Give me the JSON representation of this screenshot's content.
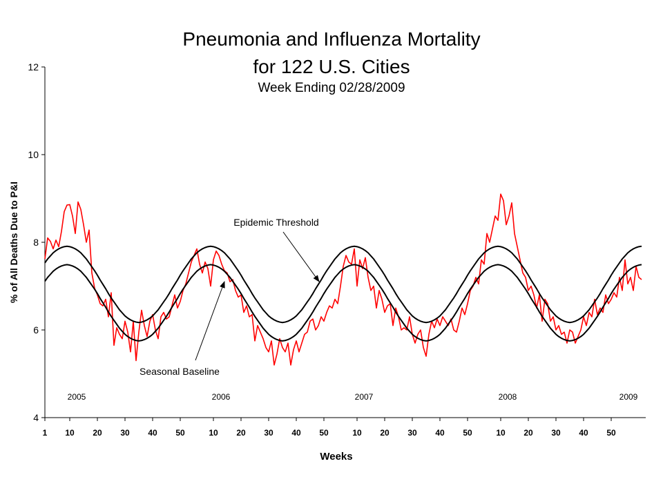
{
  "chart_data": {
    "type": "line",
    "title": "Pneumonia and Influenza Mortality",
    "title_line2": "for 122 U.S. Cities",
    "subtitle": "Week Ending 02/28/2009",
    "y_label": "% of All Deaths Due to P&I",
    "x_label": "Weeks",
    "year_labels": [
      "2005",
      "2006",
      "2007",
      "2008",
      "2009"
    ],
    "ylim": [
      4,
      12
    ],
    "yticks": [
      4,
      6,
      8,
      10,
      12
    ],
    "xlim": [
      1,
      218.5
    ],
    "xticks": [
      1,
      10,
      20,
      30,
      40,
      50,
      {
        "value": 62,
        "label": "10"
      },
      {
        "value": 72,
        "label": "20"
      },
      {
        "value": 82,
        "label": "30"
      },
      {
        "value": 92,
        "label": "40"
      },
      {
        "value": 102,
        "label": "50"
      },
      {
        "value": 114,
        "label": "10"
      },
      {
        "value": 124,
        "label": "20"
      },
      {
        "value": 134,
        "label": "30"
      },
      {
        "value": 144,
        "label": "40"
      },
      {
        "value": 154,
        "label": "50"
      },
      {
        "value": 166,
        "label": "10"
      },
      {
        "value": 176,
        "label": "20"
      },
      {
        "value": 186,
        "label": "30"
      },
      {
        "value": 196,
        "label": "40"
      },
      {
        "value": 206,
        "label": "50"
      }
    ],
    "x": [
      1,
      2,
      3,
      4,
      5,
      6,
      7,
      8,
      9,
      10,
      11,
      12,
      13,
      14,
      15,
      16,
      17,
      18,
      19,
      20,
      21,
      22,
      23,
      24,
      25,
      26,
      27,
      28,
      29,
      30,
      31,
      32,
      33,
      34,
      35,
      36,
      37,
      38,
      39,
      40,
      41,
      42,
      43,
      44,
      45,
      46,
      47,
      48,
      49,
      50,
      51,
      52,
      53,
      54,
      55,
      56,
      57,
      58,
      59,
      60,
      61,
      62,
      63,
      64,
      65,
      66,
      67,
      68,
      69,
      70,
      71,
      72,
      73,
      74,
      75,
      76,
      77,
      78,
      79,
      80,
      81,
      82,
      83,
      84,
      85,
      86,
      87,
      88,
      89,
      90,
      91,
      92,
      93,
      94,
      95,
      96,
      97,
      98,
      99,
      100,
      101,
      102,
      103,
      104,
      105,
      106,
      107,
      108,
      109,
      110,
      111,
      112,
      113,
      114,
      115,
      116,
      117,
      118,
      119,
      120,
      121,
      122,
      123,
      124,
      125,
      126,
      127,
      128,
      129,
      130,
      131,
      132,
      133,
      134,
      135,
      136,
      137,
      138,
      139,
      140,
      141,
      142,
      143,
      144,
      145,
      146,
      147,
      148,
      149,
      150,
      151,
      152,
      153,
      154,
      155,
      156,
      157,
      158,
      159,
      160,
      161,
      162,
      163,
      164,
      165,
      166,
      167,
      168,
      169,
      170,
      171,
      172,
      173,
      174,
      175,
      176,
      177,
      178,
      179,
      180,
      181,
      182,
      183,
      184,
      185,
      186,
      187,
      188,
      189,
      190,
      191,
      192,
      193,
      194,
      195,
      196,
      197,
      198,
      199,
      200,
      201,
      202,
      203,
      204,
      205,
      206,
      207,
      208,
      209,
      210,
      211,
      212,
      213,
      214,
      215,
      216,
      217
    ],
    "series": [
      {
        "color": "#ff0000",
        "values": [
          7.62,
          8.1,
          8.02,
          7.85,
          8.05,
          7.9,
          8.25,
          8.7,
          8.85,
          8.86,
          8.6,
          8.2,
          8.92,
          8.75,
          8.4,
          8.0,
          8.28,
          7.3,
          6.95,
          6.8,
          6.6,
          6.55,
          6.7,
          6.3,
          6.85,
          5.65,
          6.05,
          5.9,
          5.8,
          6.2,
          5.95,
          5.5,
          6.2,
          5.3,
          5.95,
          6.45,
          6.1,
          5.85,
          6.2,
          6.35,
          6.0,
          5.8,
          6.3,
          6.4,
          6.25,
          6.3,
          6.55,
          6.8,
          6.5,
          6.65,
          6.9,
          7.05,
          7.3,
          7.55,
          7.7,
          7.85,
          7.5,
          7.3,
          7.55,
          7.4,
          7.0,
          7.6,
          7.8,
          7.7,
          7.5,
          7.35,
          7.3,
          7.1,
          7.15,
          6.9,
          6.75,
          6.8,
          6.4,
          6.55,
          6.3,
          6.35,
          5.75,
          6.1,
          5.95,
          5.8,
          5.6,
          5.5,
          5.75,
          5.2,
          5.45,
          5.8,
          5.6,
          5.5,
          5.7,
          5.2,
          5.55,
          5.75,
          5.5,
          5.7,
          5.9,
          5.95,
          6.2,
          6.25,
          6.0,
          6.1,
          6.3,
          6.2,
          6.4,
          6.55,
          6.5,
          6.7,
          6.6,
          7.0,
          7.45,
          7.7,
          7.55,
          7.5,
          7.85,
          7.0,
          7.6,
          7.4,
          7.65,
          7.2,
          6.9,
          7.0,
          6.5,
          6.9,
          6.7,
          6.4,
          6.55,
          6.6,
          6.1,
          6.5,
          6.3,
          6.0,
          6.05,
          6.0,
          6.3,
          5.9,
          5.7,
          5.9,
          6.0,
          5.6,
          5.4,
          5.9,
          6.2,
          6.05,
          6.25,
          6.1,
          6.3,
          6.2,
          6.1,
          6.25,
          6.0,
          5.95,
          6.2,
          6.5,
          6.35,
          6.6,
          6.9,
          7.0,
          7.2,
          7.05,
          7.6,
          7.5,
          8.2,
          8.0,
          8.3,
          8.6,
          8.5,
          9.1,
          8.95,
          8.4,
          8.6,
          8.9,
          8.2,
          7.9,
          7.6,
          7.3,
          7.2,
          6.9,
          7.0,
          6.8,
          6.5,
          6.8,
          6.2,
          6.7,
          6.6,
          6.2,
          6.3,
          6.0,
          6.1,
          5.9,
          5.95,
          5.7,
          6.0,
          5.95,
          5.7,
          5.85,
          6.0,
          6.3,
          6.1,
          6.4,
          6.3,
          6.7,
          6.35,
          6.5,
          6.4,
          6.8,
          6.6,
          6.7,
          6.85,
          6.75,
          7.2,
          6.9,
          7.6,
          7.05,
          7.2,
          6.9,
          7.45,
          7.2,
          7.15
        ]
      },
      {
        "name": "Epidemic Threshold",
        "color": "#000000",
        "values": [
          7.53,
          7.62,
          7.69,
          7.76,
          7.81,
          7.85,
          7.88,
          7.9,
          7.91,
          7.9,
          7.88,
          7.85,
          7.81,
          7.76,
          7.69,
          7.62,
          7.53,
          7.44,
          7.35,
          7.25,
          7.14,
          7.04,
          6.94,
          6.83,
          6.73,
          6.64,
          6.55,
          6.46,
          6.39,
          6.32,
          6.27,
          6.23,
          6.2,
          6.18,
          6.17,
          6.18,
          6.2,
          6.23,
          6.27,
          6.32,
          6.39,
          6.46,
          6.55,
          6.64,
          6.73,
          6.83,
          6.94,
          7.04,
          7.14,
          7.25,
          7.35,
          7.44,
          7.53,
          7.62,
          7.69,
          7.76,
          7.81,
          7.85,
          7.88,
          7.9,
          7.91,
          7.9,
          7.88,
          7.85,
          7.81,
          7.76,
          7.69,
          7.62,
          7.53,
          7.44,
          7.35,
          7.25,
          7.14,
          7.04,
          6.94,
          6.83,
          6.73,
          6.64,
          6.55,
          6.46,
          6.39,
          6.32,
          6.27,
          6.23,
          6.2,
          6.18,
          6.17,
          6.18,
          6.2,
          6.23,
          6.27,
          6.32,
          6.39,
          6.46,
          6.55,
          6.64,
          6.73,
          6.83,
          6.94,
          7.04,
          7.14,
          7.25,
          7.35,
          7.44,
          7.53,
          7.62,
          7.69,
          7.76,
          7.81,
          7.85,
          7.88,
          7.9,
          7.91,
          7.9,
          7.88,
          7.85,
          7.81,
          7.76,
          7.69,
          7.62,
          7.53,
          7.44,
          7.35,
          7.25,
          7.14,
          7.04,
          6.94,
          6.83,
          6.73,
          6.64,
          6.55,
          6.46,
          6.39,
          6.32,
          6.27,
          6.23,
          6.2,
          6.18,
          6.17,
          6.18,
          6.2,
          6.23,
          6.27,
          6.32,
          6.39,
          6.46,
          6.55,
          6.64,
          6.73,
          6.83,
          6.94,
          7.04,
          7.14,
          7.25,
          7.35,
          7.44,
          7.53,
          7.62,
          7.69,
          7.76,
          7.81,
          7.85,
          7.88,
          7.9,
          7.91,
          7.9,
          7.88,
          7.85,
          7.81,
          7.76,
          7.69,
          7.62,
          7.53,
          7.44,
          7.35,
          7.25,
          7.14,
          7.04,
          6.94,
          6.83,
          6.73,
          6.64,
          6.55,
          6.46,
          6.39,
          6.32,
          6.27,
          6.23,
          6.2,
          6.18,
          6.17,
          6.18,
          6.2,
          6.23,
          6.27,
          6.32,
          6.39,
          6.46,
          6.55,
          6.64,
          6.73,
          6.83,
          6.94,
          7.04,
          7.14,
          7.25,
          7.35,
          7.44,
          7.53,
          7.62,
          7.69,
          7.76,
          7.81,
          7.85,
          7.88,
          7.9,
          7.91
        ]
      },
      {
        "name": "Seasonal Baseline",
        "color": "#000000",
        "values": [
          7.11,
          7.2,
          7.27,
          7.34,
          7.39,
          7.43,
          7.46,
          7.48,
          7.49,
          7.48,
          7.46,
          7.43,
          7.39,
          7.34,
          7.27,
          7.2,
          7.11,
          7.02,
          6.93,
          6.83,
          6.72,
          6.62,
          6.52,
          6.41,
          6.31,
          6.22,
          6.13,
          6.04,
          5.97,
          5.9,
          5.85,
          5.81,
          5.78,
          5.76,
          5.75,
          5.76,
          5.78,
          5.81,
          5.85,
          5.9,
          5.97,
          6.04,
          6.13,
          6.22,
          6.31,
          6.41,
          6.52,
          6.62,
          6.72,
          6.83,
          6.93,
          7.02,
          7.11,
          7.2,
          7.27,
          7.34,
          7.39,
          7.43,
          7.46,
          7.48,
          7.49,
          7.48,
          7.46,
          7.43,
          7.39,
          7.34,
          7.27,
          7.2,
          7.11,
          7.02,
          6.93,
          6.83,
          6.72,
          6.62,
          6.52,
          6.41,
          6.31,
          6.22,
          6.13,
          6.04,
          5.97,
          5.9,
          5.85,
          5.81,
          5.78,
          5.76,
          5.75,
          5.76,
          5.78,
          5.81,
          5.85,
          5.9,
          5.97,
          6.04,
          6.13,
          6.22,
          6.31,
          6.41,
          6.52,
          6.62,
          6.72,
          6.83,
          6.93,
          7.02,
          7.11,
          7.2,
          7.27,
          7.34,
          7.39,
          7.43,
          7.46,
          7.48,
          7.49,
          7.48,
          7.46,
          7.43,
          7.39,
          7.34,
          7.27,
          7.2,
          7.11,
          7.02,
          6.93,
          6.83,
          6.72,
          6.62,
          6.52,
          6.41,
          6.31,
          6.22,
          6.13,
          6.04,
          5.97,
          5.9,
          5.85,
          5.81,
          5.78,
          5.76,
          5.75,
          5.76,
          5.78,
          5.81,
          5.85,
          5.9,
          5.97,
          6.04,
          6.13,
          6.22,
          6.31,
          6.41,
          6.52,
          6.62,
          6.72,
          6.83,
          6.93,
          7.02,
          7.11,
          7.2,
          7.27,
          7.34,
          7.39,
          7.43,
          7.46,
          7.48,
          7.49,
          7.48,
          7.46,
          7.43,
          7.39,
          7.34,
          7.27,
          7.2,
          7.11,
          7.02,
          6.93,
          6.83,
          6.72,
          6.62,
          6.52,
          6.41,
          6.31,
          6.22,
          6.13,
          6.04,
          5.97,
          5.9,
          5.85,
          5.81,
          5.78,
          5.76,
          5.75,
          5.76,
          5.78,
          5.81,
          5.85,
          5.9,
          5.97,
          6.04,
          6.13,
          6.22,
          6.31,
          6.41,
          6.52,
          6.62,
          6.72,
          6.83,
          6.93,
          7.02,
          7.11,
          7.2,
          7.27,
          7.34,
          7.39,
          7.43,
          7.46,
          7.48,
          7.49
        ]
      }
    ]
  }
}
